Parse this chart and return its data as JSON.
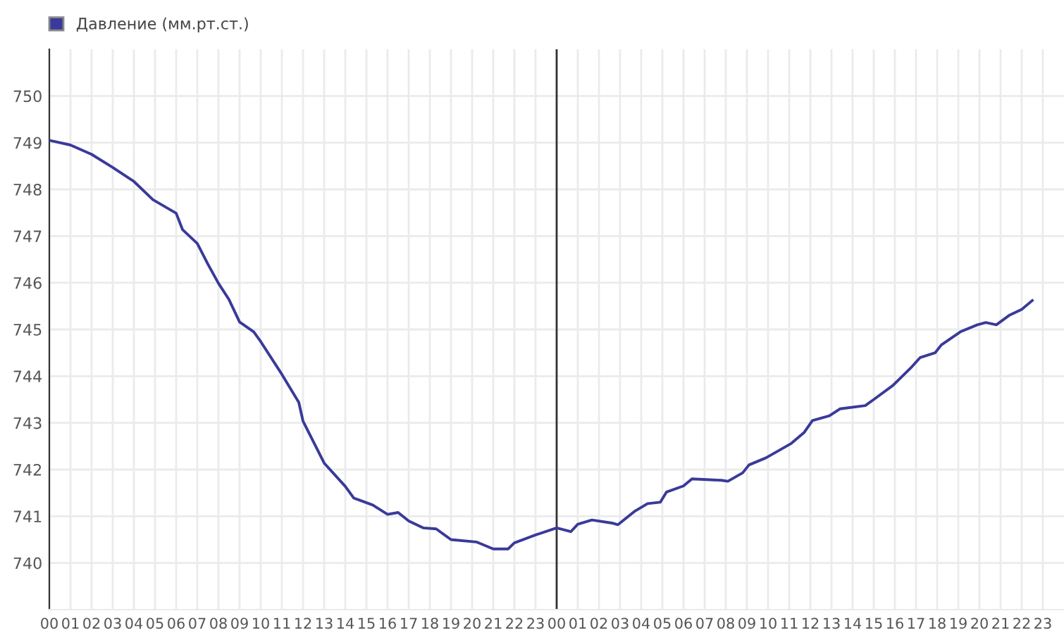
{
  "chart_data": {
    "type": "line",
    "legend": "top left",
    "grid": true,
    "marker": "none",
    "line_style": "solid",
    "x": [
      0,
      1,
      2,
      3,
      4,
      4.9,
      6,
      6.3,
      7,
      7.5,
      8,
      8.5,
      9,
      9.67,
      10,
      11,
      11.8,
      12,
      13,
      14,
      14.4,
      15.3,
      16,
      16.5,
      17,
      17.7,
      18.3,
      19,
      20.2,
      21,
      21.7,
      22,
      23,
      24,
      24.67,
      25,
      25.67,
      26.67,
      26.9,
      27.67,
      28.3,
      28.9,
      29.2,
      30,
      30.4,
      31.8,
      32.1,
      32.8,
      33.1,
      33.9,
      35.1,
      35.7,
      36.1,
      36.9,
      37.4,
      38.6,
      39,
      39.9,
      40.8,
      41.2,
      41.9,
      42.2,
      43.1,
      43.9,
      44.3,
      44.8,
      45.4,
      46,
      46.5
    ],
    "series": [
      {
        "name": "Давление (мм.рт.ст.)",
        "color": "#3a3a9a",
        "values": [
          749.05,
          748.95,
          748.75,
          748.47,
          748.17,
          747.78,
          747.49,
          747.14,
          746.84,
          746.4,
          745.99,
          745.64,
          745.16,
          744.95,
          744.74,
          744.04,
          743.44,
          743.04,
          742.14,
          741.64,
          741.39,
          741.24,
          741.04,
          741.08,
          740.9,
          740.75,
          740.73,
          740.5,
          740.45,
          740.3,
          740.3,
          740.43,
          740.6,
          740.75,
          740.67,
          740.83,
          740.92,
          740.85,
          740.82,
          741.1,
          741.27,
          741.3,
          741.52,
          741.65,
          741.8,
          741.77,
          741.75,
          741.93,
          742.1,
          742.25,
          742.56,
          742.79,
          743.05,
          743.15,
          743.3,
          743.37,
          743.5,
          743.8,
          744.2,
          744.4,
          744.5,
          744.67,
          744.95,
          745.1,
          745.15,
          745.1,
          745.3,
          745.43,
          745.62
        ]
      }
    ],
    "xlim": [
      0,
      48
    ],
    "xticks": [
      {
        "value": 0,
        "label": "00"
      },
      {
        "value": 1,
        "label": "01"
      },
      {
        "value": 2,
        "label": "02"
      },
      {
        "value": 3,
        "label": "03"
      },
      {
        "value": 4,
        "label": "04"
      },
      {
        "value": 5,
        "label": "05"
      },
      {
        "value": 6,
        "label": "06"
      },
      {
        "value": 7,
        "label": "07"
      },
      {
        "value": 8,
        "label": "08"
      },
      {
        "value": 9,
        "label": "09"
      },
      {
        "value": 10,
        "label": "10"
      },
      {
        "value": 11,
        "label": "11"
      },
      {
        "value": 12,
        "label": "12"
      },
      {
        "value": 13,
        "label": "13"
      },
      {
        "value": 14,
        "label": "14"
      },
      {
        "value": 15,
        "label": "15"
      },
      {
        "value": 16,
        "label": "16"
      },
      {
        "value": 17,
        "label": "17"
      },
      {
        "value": 18,
        "label": "18"
      },
      {
        "value": 19,
        "label": "19"
      },
      {
        "value": 20,
        "label": "20"
      },
      {
        "value": 21,
        "label": "21"
      },
      {
        "value": 22,
        "label": "22"
      },
      {
        "value": 23,
        "label": "23"
      },
      {
        "value": 24,
        "label": "00"
      },
      {
        "value": 25,
        "label": "01"
      },
      {
        "value": 26,
        "label": "02"
      },
      {
        "value": 27,
        "label": "03"
      },
      {
        "value": 28,
        "label": "04"
      },
      {
        "value": 29,
        "label": "05"
      },
      {
        "value": 30,
        "label": "06"
      },
      {
        "value": 31,
        "label": "07"
      },
      {
        "value": 32,
        "label": "08"
      },
      {
        "value": 33,
        "label": "09"
      },
      {
        "value": 34,
        "label": "10"
      },
      {
        "value": 35,
        "label": "11"
      },
      {
        "value": 36,
        "label": "12"
      },
      {
        "value": 37,
        "label": "13"
      },
      {
        "value": 38,
        "label": "14"
      },
      {
        "value": 39,
        "label": "15"
      },
      {
        "value": 40,
        "label": "16"
      },
      {
        "value": 41,
        "label": "17"
      },
      {
        "value": 42,
        "label": "18"
      },
      {
        "value": 43,
        "label": "19"
      },
      {
        "value": 44,
        "label": "20"
      },
      {
        "value": 45,
        "label": "21"
      },
      {
        "value": 46,
        "label": "22"
      },
      {
        "value": 47,
        "label": "23"
      }
    ],
    "ylim": [
      739,
      751
    ],
    "yticks": [
      740,
      741,
      742,
      743,
      744,
      745,
      746,
      747,
      748,
      749,
      750
    ],
    "ref_lines": [
      {
        "axis": "x",
        "value": 24,
        "label": null,
        "color": "#333333"
      }
    ]
  }
}
